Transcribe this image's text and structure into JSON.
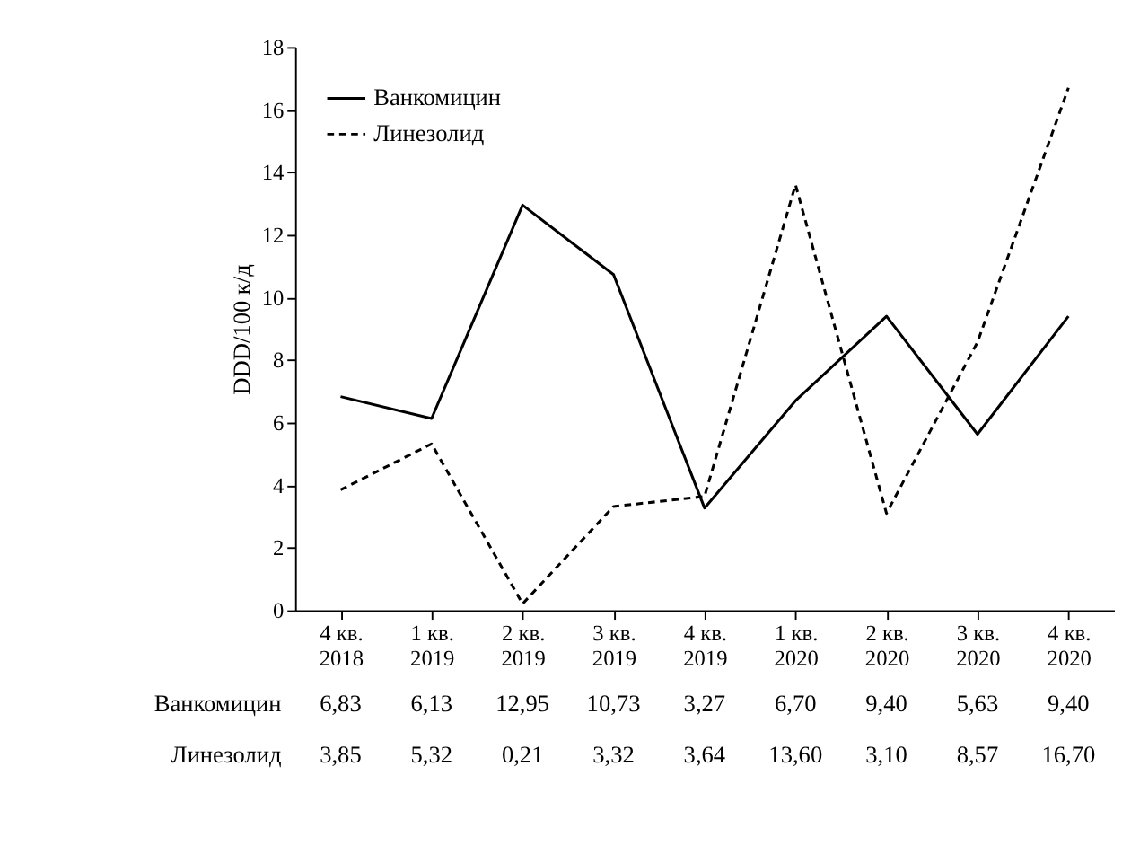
{
  "chart_data": {
    "type": "line",
    "ylabel": "DDD/100 к/д",
    "categories": [
      "4 кв.\n2018",
      "1 кв.\n2019",
      "2 кв.\n2019",
      "3 кв.\n2019",
      "4 кв.\n2019",
      "1 кв.\n2020",
      "2 кв.\n2020",
      "3 кв.\n2020",
      "4 кв.\n2020"
    ],
    "series": [
      {
        "name": "Ванкомицин",
        "color": "#000000",
        "line_style": "solid",
        "values": [
          6.83,
          6.13,
          12.95,
          10.73,
          3.27,
          6.7,
          9.4,
          5.63,
          9.4
        ],
        "value_labels": [
          "6,83",
          "6,13",
          "12,95",
          "10,73",
          "3,27",
          "6,70",
          "9,40",
          "5,63",
          "9,40"
        ]
      },
      {
        "name": "Линезолид",
        "color": "#000000",
        "line_style": "dashed",
        "values": [
          3.85,
          5.32,
          0.21,
          3.32,
          3.64,
          13.6,
          3.1,
          8.57,
          16.7
        ],
        "value_labels": [
          "3,85",
          "5,32",
          "0,21",
          "3,32",
          "3,64",
          "13,60",
          "3,10",
          "8,57",
          "16,70"
        ]
      }
    ],
    "ylim": [
      0,
      18
    ],
    "yticks": [
      0,
      2,
      4,
      6,
      8,
      10,
      12,
      14,
      16,
      18
    ],
    "grid": false,
    "legend": "top left",
    "marker": "none"
  }
}
